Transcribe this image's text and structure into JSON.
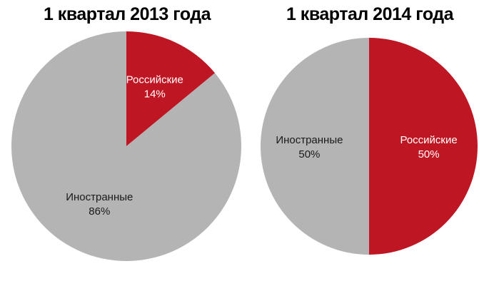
{
  "chart_data": [
    {
      "type": "pie",
      "title": "1 квартал 2013 года",
      "slices": [
        {
          "label": "Российские",
          "value": 14,
          "value_label": "14%",
          "color": "#be1622",
          "label_color": "#ffffff"
        },
        {
          "label": "Иностранные",
          "value": 86,
          "value_label": "86%",
          "color": "#b4b4b4",
          "label_color": "#1a1a1a"
        }
      ]
    },
    {
      "type": "pie",
      "title": "1 квартал 2014 года",
      "slices": [
        {
          "label": "Российские",
          "value": 50,
          "value_label": "50%",
          "color": "#be1622",
          "label_color": "#ffffff"
        },
        {
          "label": "Иностранные",
          "value": 50,
          "value_label": "50%",
          "color": "#b4b4b4",
          "label_color": "#1a1a1a"
        }
      ]
    }
  ]
}
